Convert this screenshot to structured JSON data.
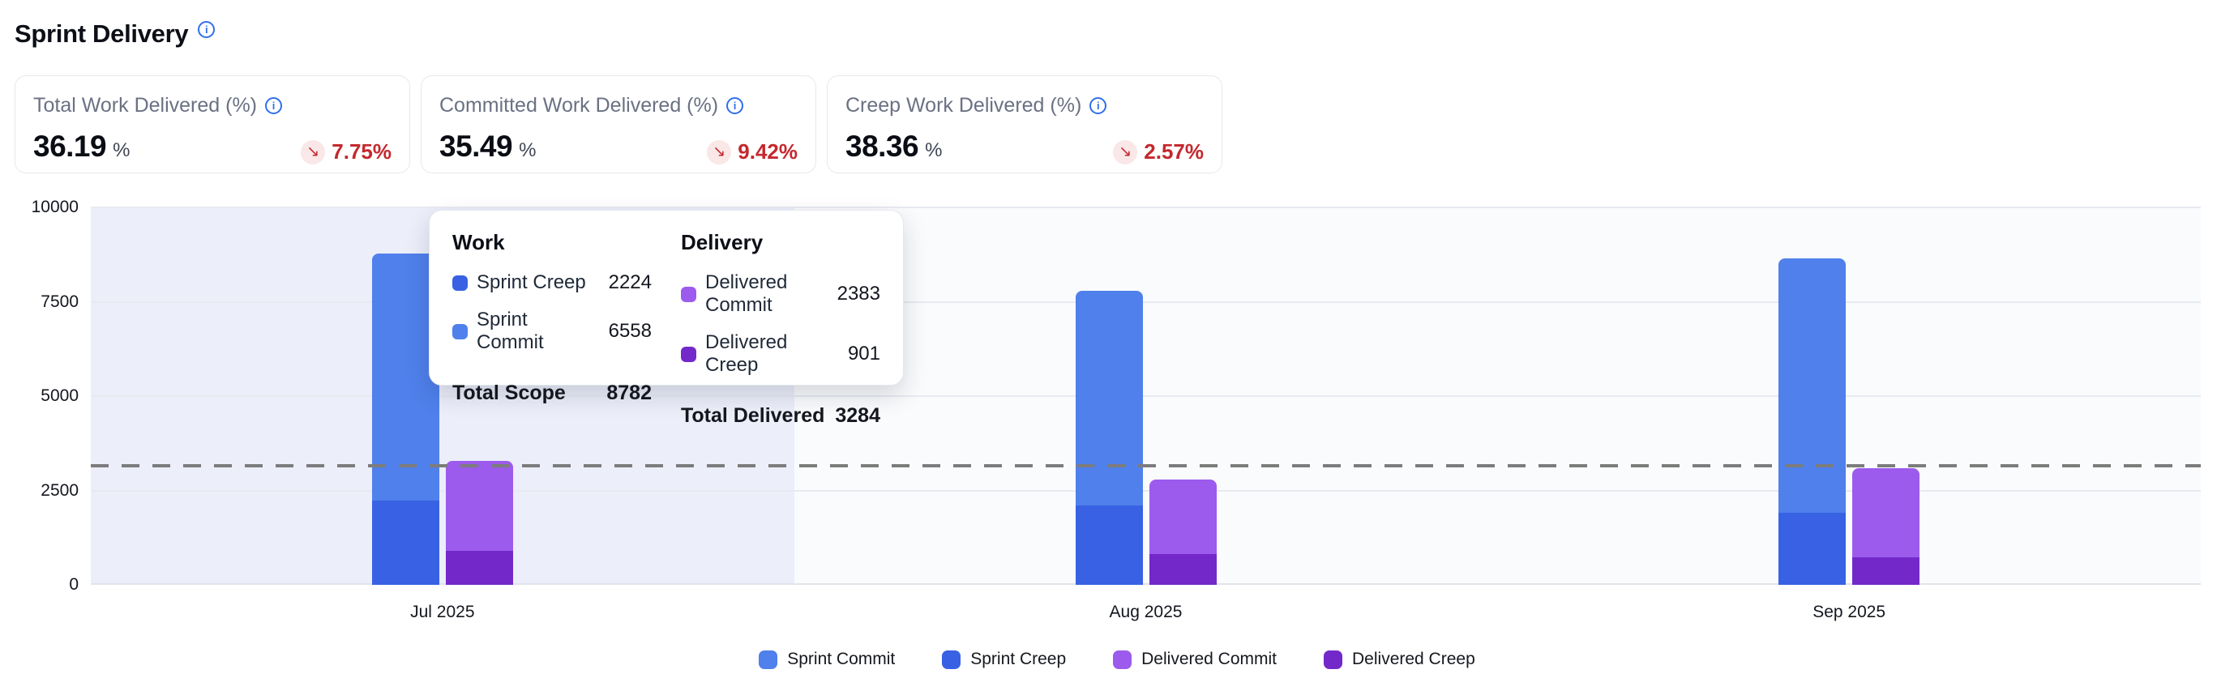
{
  "page": {
    "title": "Sprint Delivery"
  },
  "kpi_cards": [
    {
      "label": "Total Work Delivered (%)",
      "value": "36.19",
      "unit": "%",
      "delta_value": "7.75%",
      "delta_icon": "down-right-arrow"
    },
    {
      "label": "Committed Work Delivered (%)",
      "value": "35.49",
      "unit": "%",
      "delta_value": "9.42%",
      "delta_icon": "down-right-arrow"
    },
    {
      "label": "Creep Work Delivered (%)",
      "value": "38.36",
      "unit": "%",
      "delta_value": "2.57%",
      "delta_icon": "down-right-arrow"
    }
  ],
  "colors": {
    "sprint_commit": "#4f80eb",
    "sprint_creep": "#3862e3",
    "delivered_commit": "#9c5bec",
    "delivered_creep": "#7329c9",
    "reference_line": "#7c7c7c",
    "highlight_band": "#eceefa",
    "plot_background": "#fafbfd",
    "gridline": "#e8eaf1",
    "delta_negative": "#c4282e",
    "delta_badge_background": "#fae7e7",
    "info_icon": "#2f6feb"
  },
  "glyphs": {
    "down_right_arrow": "↘",
    "info": "i"
  },
  "chart_data": {
    "type": "bar",
    "title": "Sprint Delivery",
    "categories": [
      "Jul 2025",
      "Aug 2025",
      "Sep 2025"
    ],
    "series": [
      {
        "name": "Sprint Creep",
        "stack": "work",
        "stack_index": 0,
        "color_key": "sprint_creep",
        "values": [
          2224,
          2110,
          1920
        ]
      },
      {
        "name": "Sprint Commit",
        "stack": "work",
        "stack_index": 1,
        "color_key": "sprint_commit",
        "values": [
          6558,
          5690,
          6720
        ]
      },
      {
        "name": "Delivered Creep",
        "stack": "delivery",
        "stack_index": 0,
        "color_key": "delivered_creep",
        "values": [
          901,
          820,
          730
        ]
      },
      {
        "name": "Delivered Commit",
        "stack": "delivery",
        "stack_index": 1,
        "color_key": "delivered_commit",
        "values": [
          2383,
          1960,
          2370
        ]
      }
    ],
    "stack_totals": {
      "work": [
        8782,
        7800,
        8640
      ],
      "delivery": [
        3284,
        2780,
        3100
      ]
    },
    "ylim": [
      0,
      10000
    ],
    "yticks": [
      0,
      2500,
      5000,
      7500,
      10000
    ],
    "reference_line_value": 3145,
    "highlighted_category_index": 0,
    "grid": "horizontal",
    "legend_position": "bottom",
    "legend": [
      {
        "label": "Sprint Commit",
        "color_key": "sprint_commit"
      },
      {
        "label": "Sprint Creep",
        "color_key": "sprint_creep"
      },
      {
        "label": "Delivered Commit",
        "color_key": "delivered_commit"
      },
      {
        "label": "Delivered Creep",
        "color_key": "delivered_creep"
      }
    ]
  },
  "tooltip": {
    "work": {
      "header": "Work",
      "rows": [
        {
          "label": "Sprint Creep",
          "value": "2224",
          "color_key": "sprint_creep"
        },
        {
          "label": "Sprint Commit",
          "value": "6558",
          "color_key": "sprint_commit"
        }
      ],
      "total_label": "Total Scope",
      "total_value": "8782"
    },
    "delivery": {
      "header": "Delivery",
      "rows": [
        {
          "label": "Delivered Commit",
          "value": "2383",
          "color_key": "delivered_commit"
        },
        {
          "label": "Delivered Creep",
          "value": "901",
          "color_key": "delivered_creep"
        }
      ],
      "total_label": "Total Delivered",
      "total_value": "3284"
    }
  }
}
